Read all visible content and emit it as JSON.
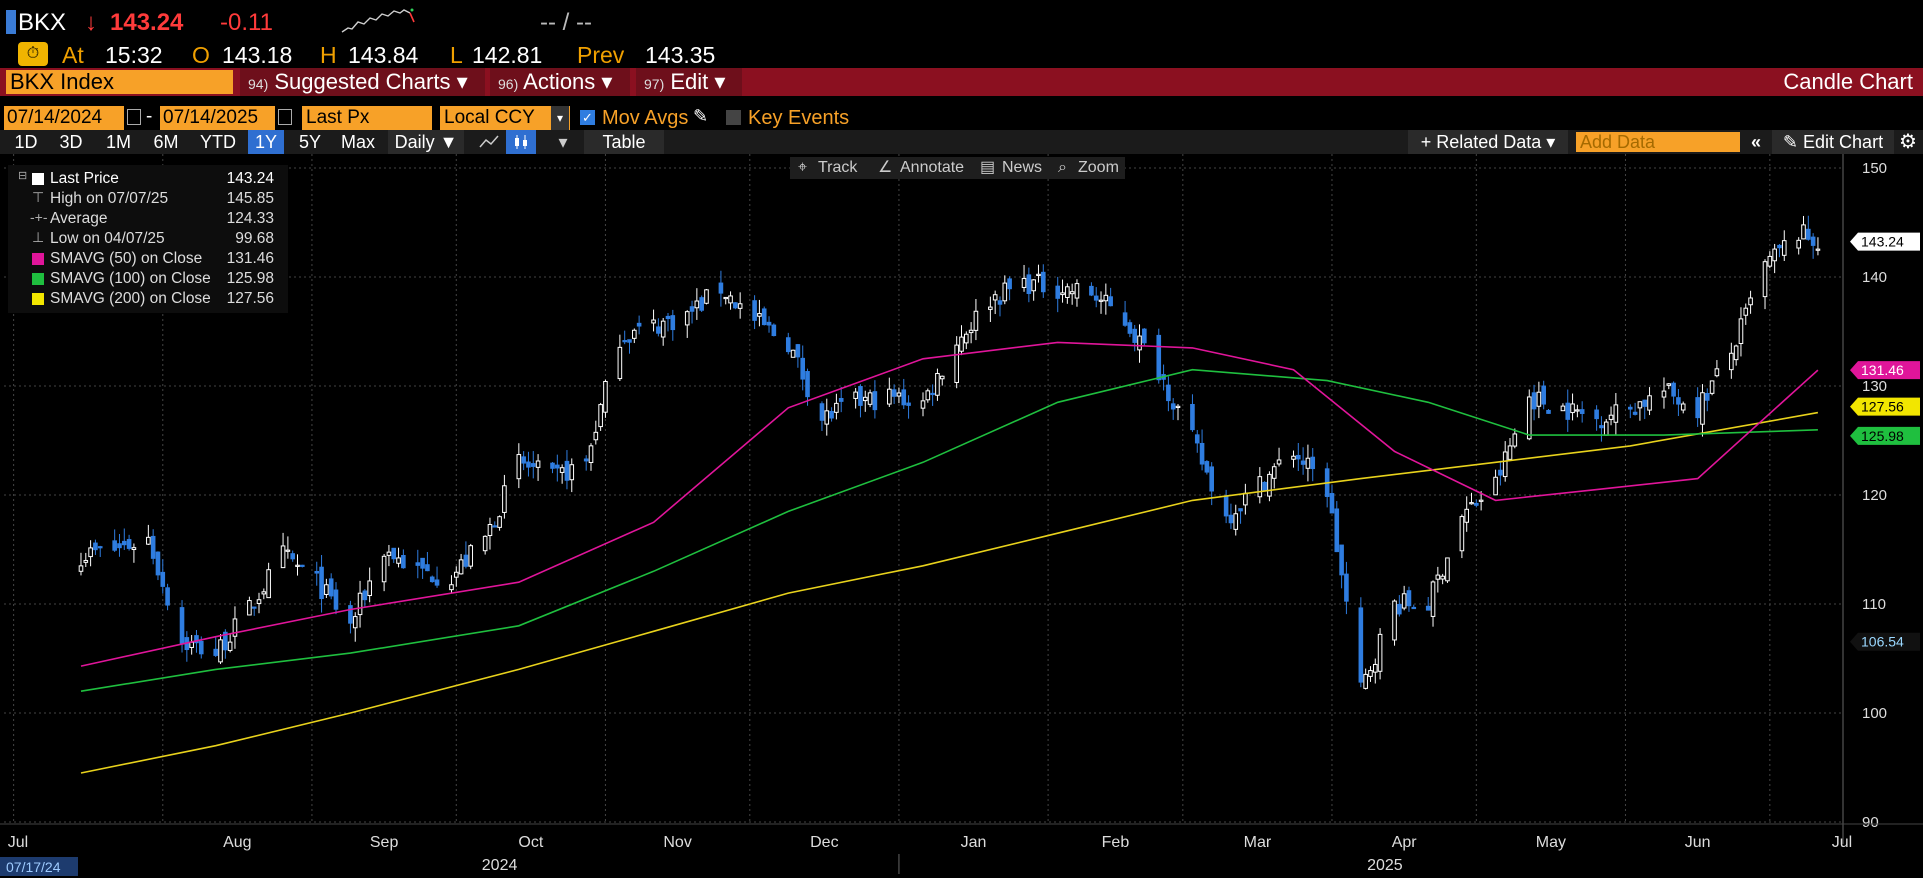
{
  "header": {
    "ticker": "BKX",
    "arrow": "↓",
    "last": "143.24",
    "change": "-0.11",
    "bidask": "-- / --",
    "at_label": "At",
    "time": "15:32",
    "open_label": "O",
    "open": "143.18",
    "high_label": "H",
    "high": "143.84",
    "low_label": "L",
    "low": "142.81",
    "prev_label": "Prev",
    "prev": "143.35"
  },
  "menubar": {
    "security": "BKX Index",
    "suggested_num": "94)",
    "suggested": "Suggested Charts",
    "actions_num": "96)",
    "actions": "Actions",
    "edit_num": "97)",
    "edit": "Edit",
    "chart_type": "Candle Chart"
  },
  "controls": {
    "start_date": "07/14/2024",
    "dash": "-",
    "end_date": "07/14/2025",
    "field": "Last Px",
    "currency": "Local CCY",
    "mov_avgs": "Mov Avgs",
    "key_events": "Key Events",
    "ranges": [
      "1D",
      "3D",
      "1M",
      "6M",
      "YTD",
      "1Y",
      "5Y",
      "Max"
    ],
    "selected_range": "1Y",
    "period": "Daily ▼",
    "table": "Table",
    "related": "+ Related Data ▾",
    "add_data_placeholder": "Add Data",
    "edit_chart": "Edit Chart"
  },
  "toolbar": {
    "track": "Track",
    "annotate": "Annotate",
    "news": "News",
    "zoom": "Zoom"
  },
  "legend": [
    {
      "name": "Last Price",
      "value": "143.24",
      "color": "#ffffff"
    },
    {
      "name": "High on 07/07/25",
      "value": "145.85",
      "color": ""
    },
    {
      "name": "Average",
      "value": "124.33",
      "color": ""
    },
    {
      "name": "Low on 04/07/25",
      "value": "99.68",
      "color": ""
    },
    {
      "name": "SMAVG (50)  on Close",
      "value": "131.46",
      "color": "#e0159a"
    },
    {
      "name": "SMAVG (100)  on Close",
      "value": "125.98",
      "color": "#1fbf3f"
    },
    {
      "name": "SMAVG (200)  on Close",
      "value": "127.56",
      "color": "#f2e600"
    }
  ],
  "chart_data": {
    "type": "candlestick",
    "x_axis": {
      "month_labels": [
        "Jul",
        "Aug",
        "Sep",
        "Oct",
        "Nov",
        "Dec",
        "Jan",
        "Feb",
        "Mar",
        "Apr",
        "May",
        "Jun",
        "Jul"
      ],
      "year_labels": [
        "2024",
        "2025"
      ],
      "cursor_date": "07/17/24"
    },
    "y_axis": {
      "min": 90,
      "max": 150,
      "ticks": [
        150,
        140,
        130,
        120,
        110,
        100,
        90
      ]
    },
    "grid": true,
    "colors": {
      "up": "#ffffff",
      "down": "#2f7de0",
      "sma50": "#e0159a",
      "sma100": "#1fbf3f",
      "sma200": "#e8d21c"
    },
    "price_tags": [
      {
        "value": 143.24,
        "label": "143.24",
        "bg": "#ffffff",
        "fg": "#000000"
      },
      {
        "value": 131.46,
        "label": "131.46",
        "bg": "#e0159a",
        "fg": "#ffffff"
      },
      {
        "value": 127.56,
        "label": "127.56",
        "bg": "#f2e600",
        "fg": "#000000"
      },
      {
        "value": 125.98,
        "label": "125.98",
        "bg": "#1fbf3f",
        "fg": "#000000"
      },
      {
        "value": 106.54,
        "label": "106.54",
        "bg": "#111111",
        "fg": "#9ad8ff"
      }
    ],
    "close_path": [
      [
        "2024-07-15",
        114.5
      ],
      [
        "2024-07-22",
        115.0
      ],
      [
        "2024-07-29",
        116.0
      ],
      [
        "2024-08-05",
        106.5
      ],
      [
        "2024-08-12",
        105.5
      ],
      [
        "2024-08-19",
        109.5
      ],
      [
        "2024-08-26",
        114.5
      ],
      [
        "2024-09-02",
        112.0
      ],
      [
        "2024-09-09",
        108.0
      ],
      [
        "2024-09-16",
        115.0
      ],
      [
        "2024-09-23",
        113.0
      ],
      [
        "2024-09-30",
        112.5
      ],
      [
        "2024-10-07",
        116.0
      ],
      [
        "2024-10-14",
        123.0
      ],
      [
        "2024-10-21",
        121.5
      ],
      [
        "2024-10-28",
        123.0
      ],
      [
        "2024-11-04",
        134.5
      ],
      [
        "2024-11-11",
        135.5
      ],
      [
        "2024-11-18",
        136.5
      ],
      [
        "2024-11-25",
        139.0
      ],
      [
        "2024-12-02",
        136.0
      ],
      [
        "2024-12-09",
        134.0
      ],
      [
        "2024-12-16",
        127.0
      ],
      [
        "2024-12-23",
        128.5
      ],
      [
        "2024-12-30",
        129.0
      ],
      [
        "2025-01-06",
        128.5
      ],
      [
        "2025-01-13",
        134.0
      ],
      [
        "2025-01-20",
        138.0
      ],
      [
        "2025-01-27",
        139.5
      ],
      [
        "2025-02-03",
        139.0
      ],
      [
        "2025-02-10",
        138.5
      ],
      [
        "2025-02-17",
        136.0
      ],
      [
        "2025-02-24",
        131.5
      ],
      [
        "2025-03-03",
        125.0
      ],
      [
        "2025-03-10",
        118.0
      ],
      [
        "2025-03-17",
        121.0
      ],
      [
        "2025-03-24",
        124.0
      ],
      [
        "2025-03-31",
        120.5
      ],
      [
        "2025-04-07",
        102.0
      ],
      [
        "2025-04-14",
        110.0
      ],
      [
        "2025-04-21",
        110.0
      ],
      [
        "2025-04-28",
        118.0
      ],
      [
        "2025-05-05",
        121.0
      ],
      [
        "2025-05-12",
        129.0
      ],
      [
        "2025-05-19",
        128.0
      ],
      [
        "2025-05-26",
        127.0
      ],
      [
        "2025-06-02",
        128.0
      ],
      [
        "2025-06-09",
        129.5
      ],
      [
        "2025-06-16",
        128.0
      ],
      [
        "2025-06-23",
        133.0
      ],
      [
        "2025-06-30",
        141.0
      ],
      [
        "2025-07-07",
        144.0
      ],
      [
        "2025-07-11",
        143.24
      ]
    ],
    "sma50": [
      [
        "2024-07-15",
        104.3
      ],
      [
        "2024-08-12",
        107.0
      ],
      [
        "2024-09-09",
        109.5
      ],
      [
        "2024-10-14",
        112.0
      ],
      [
        "2024-11-11",
        117.5
      ],
      [
        "2024-12-09",
        128.0
      ],
      [
        "2025-01-06",
        132.5
      ],
      [
        "2025-02-03",
        134.0
      ],
      [
        "2025-03-03",
        133.5
      ],
      [
        "2025-03-24",
        131.5
      ],
      [
        "2025-04-14",
        124.0
      ],
      [
        "2025-05-05",
        119.5
      ],
      [
        "2025-05-26",
        120.5
      ],
      [
        "2025-06-16",
        121.5
      ],
      [
        "2025-07-11",
        131.46
      ]
    ],
    "sma100": [
      [
        "2024-07-15",
        102.0
      ],
      [
        "2024-08-12",
        104.0
      ],
      [
        "2024-09-09",
        105.5
      ],
      [
        "2024-10-14",
        108.0
      ],
      [
        "2024-11-11",
        113.0
      ],
      [
        "2024-12-09",
        118.5
      ],
      [
        "2025-01-06",
        123.0
      ],
      [
        "2025-02-03",
        128.5
      ],
      [
        "2025-03-03",
        131.5
      ],
      [
        "2025-03-31",
        130.5
      ],
      [
        "2025-04-21",
        128.5
      ],
      [
        "2025-05-12",
        125.5
      ],
      [
        "2025-06-09",
        125.5
      ],
      [
        "2025-07-11",
        125.98
      ]
    ],
    "sma200": [
      [
        "2024-07-15",
        94.5
      ],
      [
        "2024-08-12",
        97.0
      ],
      [
        "2024-09-09",
        100.0
      ],
      [
        "2024-10-14",
        104.0
      ],
      [
        "2024-11-11",
        107.5
      ],
      [
        "2024-12-09",
        111.0
      ],
      [
        "2025-01-06",
        113.5
      ],
      [
        "2025-02-03",
        116.5
      ],
      [
        "2025-03-03",
        119.5
      ],
      [
        "2025-04-07",
        121.5
      ],
      [
        "2025-05-05",
        123.0
      ],
      [
        "2025-06-02",
        124.5
      ],
      [
        "2025-07-11",
        127.56
      ]
    ]
  }
}
